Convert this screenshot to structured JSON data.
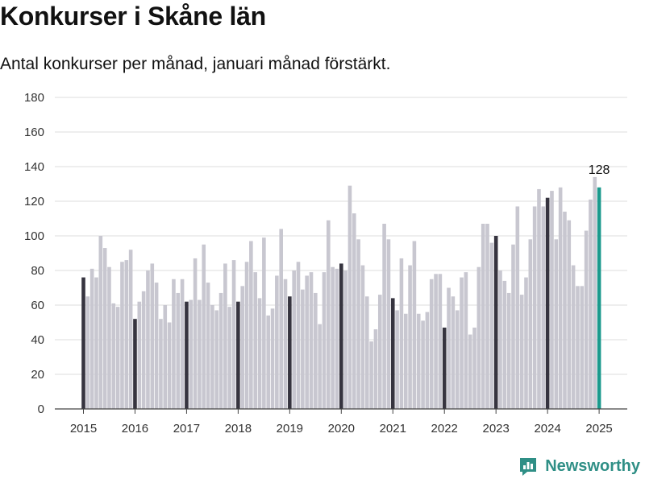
{
  "title": "Konkurser i Skåne län",
  "subtitle": "Antal konkurser per månad, januari månad förstärkt.",
  "brand": {
    "name": "Newsworthy",
    "icon": "newsworthy-chart-icon"
  },
  "colors": {
    "bar": "#c8c7d0",
    "january": "#36343f",
    "latest": "#1b9a8d",
    "grid": "#dddddd",
    "brand": "#2f8f86"
  },
  "chart_data": {
    "type": "bar",
    "title": "Konkurser i Skåne län",
    "subtitle": "Antal konkurser per månad, januari månad förstärkt.",
    "xlabel": "",
    "ylabel": "",
    "ylim": [
      0,
      180
    ],
    "yticks": [
      0,
      20,
      40,
      60,
      80,
      100,
      120,
      140,
      160,
      180
    ],
    "xticks": [
      "2015",
      "2016",
      "2017",
      "2018",
      "2019",
      "2020",
      "2021",
      "2022",
      "2023",
      "2024",
      "2025"
    ],
    "grid": true,
    "start": "2015-01",
    "annotation": {
      "label": "128",
      "month": "2025-01"
    },
    "values": [
      76,
      65,
      81,
      76,
      100,
      93,
      82,
      61,
      59,
      85,
      86,
      92,
      52,
      62,
      68,
      80,
      84,
      73,
      52,
      60,
      50,
      75,
      67,
      75,
      62,
      63,
      87,
      63,
      95,
      73,
      60,
      57,
      67,
      84,
      59,
      86,
      62,
      71,
      85,
      97,
      79,
      64,
      99,
      54,
      58,
      77,
      104,
      75,
      65,
      80,
      85,
      69,
      77,
      79,
      67,
      49,
      79,
      109,
      82,
      81,
      84,
      80,
      129,
      113,
      98,
      83,
      65,
      39,
      46,
      66,
      107,
      98,
      64,
      57,
      87,
      55,
      83,
      97,
      55,
      51,
      56,
      75,
      78,
      78,
      47,
      70,
      65,
      57,
      76,
      79,
      43,
      47,
      82,
      107,
      107,
      96,
      100,
      80,
      74,
      67,
      95,
      117,
      66,
      76,
      98,
      117,
      127,
      117,
      122,
      126,
      98,
      128,
      114,
      109,
      83,
      71,
      71,
      103,
      121,
      134,
      128
    ]
  }
}
